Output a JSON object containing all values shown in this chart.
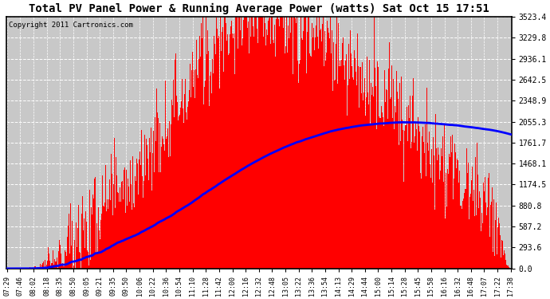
{
  "title": "Total PV Panel Power & Running Average Power (watts) Sat Oct 15 17:51",
  "copyright": "Copyright 2011 Cartronics.com",
  "yticks": [
    0.0,
    293.6,
    587.2,
    880.8,
    1174.5,
    1468.1,
    1761.7,
    2055.3,
    2348.9,
    2642.5,
    2936.1,
    3229.8,
    3523.4
  ],
  "ymax": 3523.4,
  "ymin": 0.0,
  "bar_color": "#FF0000",
  "avg_color": "#0000FF",
  "bg_color": "#FFFFFF",
  "plot_bg_color": "#C8C8C8",
  "title_fontsize": 11,
  "copyright_fontsize": 6.5,
  "xtick_labels": [
    "07:29",
    "07:46",
    "08:02",
    "08:18",
    "08:35",
    "08:50",
    "09:05",
    "09:21",
    "09:35",
    "09:50",
    "10:06",
    "10:22",
    "10:36",
    "10:54",
    "11:10",
    "11:28",
    "11:42",
    "12:00",
    "12:16",
    "12:32",
    "12:48",
    "13:05",
    "13:22",
    "13:36",
    "13:54",
    "14:13",
    "14:29",
    "14:44",
    "15:00",
    "15:14",
    "15:28",
    "15:45",
    "15:58",
    "16:16",
    "16:32",
    "16:48",
    "17:07",
    "17:22",
    "17:38"
  ]
}
